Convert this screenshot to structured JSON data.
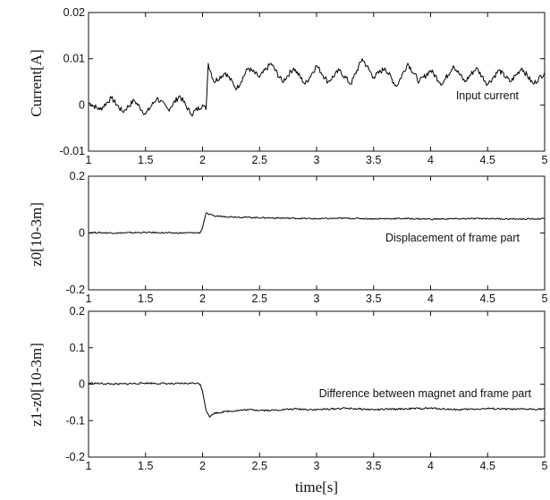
{
  "chart_data": [
    {
      "type": "line",
      "ylabel": "Current[A]",
      "annotation": "Input current",
      "xlim": [
        1,
        5
      ],
      "ylim": [
        -0.01,
        0.02
      ],
      "xticks": [
        "1",
        "1.5",
        "2",
        "2.5",
        "3",
        "3.5",
        "4",
        "4.5",
        "5"
      ],
      "yticks": [
        "-0.01",
        "0",
        "0.01",
        "0.02"
      ],
      "xtick_values": [
        1,
        1.5,
        2,
        2.5,
        3,
        3.5,
        4,
        4.5,
        5
      ],
      "ytick_values": [
        -0.01,
        0,
        0.01,
        0.02
      ],
      "series": [
        {
          "x": [
            1.0,
            1.1,
            1.2,
            1.3,
            1.4,
            1.5,
            1.6,
            1.7,
            1.8,
            1.9,
            2.0,
            2.03,
            2.05,
            2.1,
            2.2,
            2.3,
            2.4,
            2.5,
            2.6,
            2.7,
            2.8,
            2.9,
            3.0,
            3.1,
            3.2,
            3.3,
            3.4,
            3.5,
            3.6,
            3.7,
            3.8,
            3.9,
            4.0,
            4.1,
            4.2,
            4.3,
            4.4,
            4.5,
            4.6,
            4.7,
            4.8,
            4.9,
            5.0
          ],
          "values": [
            0.0005,
            -0.001,
            0.0015,
            -0.0015,
            0.001,
            -0.002,
            0.0015,
            -0.001,
            0.002,
            -0.002,
            0.0,
            -0.001,
            0.009,
            0.005,
            0.007,
            0.0035,
            0.008,
            0.006,
            0.009,
            0.005,
            0.008,
            0.0045,
            0.0085,
            0.005,
            0.0075,
            0.0045,
            0.01,
            0.006,
            0.008,
            0.004,
            0.009,
            0.005,
            0.0075,
            0.0045,
            0.0085,
            0.005,
            0.008,
            0.0045,
            0.0075,
            0.005,
            0.008,
            0.0045,
            0.007
          ]
        }
      ]
    },
    {
      "type": "line",
      "ylabel": "z0[10-3m]",
      "annotation": "Displacement of frame part",
      "xlim": [
        1,
        5
      ],
      "ylim": [
        -0.2,
        0.2
      ],
      "xticks": [
        "1",
        "1.5",
        "2",
        "2.5",
        "3",
        "3.5",
        "4",
        "4.5",
        "5"
      ],
      "yticks": [
        "-0.2",
        "0",
        "0.2"
      ],
      "xtick_values": [
        1,
        1.5,
        2,
        2.5,
        3,
        3.5,
        4,
        4.5,
        5
      ],
      "ytick_values": [
        -0.2,
        0,
        0.2
      ],
      "series": [
        {
          "x": [
            1.0,
            1.25,
            1.5,
            1.75,
            1.98,
            2.0,
            2.03,
            2.06,
            2.1,
            2.2,
            2.4,
            2.6,
            2.8,
            3.0,
            3.25,
            3.5,
            3.75,
            4.0,
            4.25,
            4.5,
            4.75,
            5.0
          ],
          "values": [
            0.002,
            0.0,
            0.002,
            0.0,
            0.001,
            0.02,
            0.07,
            0.065,
            0.06,
            0.058,
            0.055,
            0.053,
            0.052,
            0.05,
            0.052,
            0.05,
            0.051,
            0.049,
            0.05,
            0.051,
            0.049,
            0.05
          ]
        }
      ]
    },
    {
      "type": "line",
      "ylabel": "z1-z0[10-3m]",
      "annotation": "Difference between magnet and frame part",
      "xlabel": "time[s]",
      "xlim": [
        1,
        5
      ],
      "ylim": [
        -0.2,
        0.2
      ],
      "xticks": [
        "1",
        "1.5",
        "2",
        "2.5",
        "3",
        "3.5",
        "4",
        "4.5",
        "5"
      ],
      "yticks": [
        "-0.2",
        "-0.1",
        "0",
        "0.1",
        "0.2"
      ],
      "xtick_values": [
        1,
        1.5,
        2,
        2.5,
        3,
        3.5,
        4,
        4.5,
        5
      ],
      "ytick_values": [
        -0.2,
        -0.1,
        0,
        0.1,
        0.2
      ],
      "series": [
        {
          "x": [
            1.0,
            1.25,
            1.5,
            1.75,
            1.95,
            1.98,
            2.0,
            2.03,
            2.06,
            2.1,
            2.2,
            2.4,
            2.6,
            2.8,
            3.0,
            3.25,
            3.5,
            3.75,
            4.0,
            4.25,
            4.5,
            4.75,
            5.0
          ],
          "values": [
            0.003,
            0.0,
            0.003,
            0.001,
            0.003,
            0.0,
            -0.02,
            -0.07,
            -0.09,
            -0.08,
            -0.075,
            -0.07,
            -0.072,
            -0.068,
            -0.07,
            -0.066,
            -0.07,
            -0.068,
            -0.066,
            -0.07,
            -0.067,
            -0.069,
            -0.068
          ]
        }
      ]
    }
  ]
}
